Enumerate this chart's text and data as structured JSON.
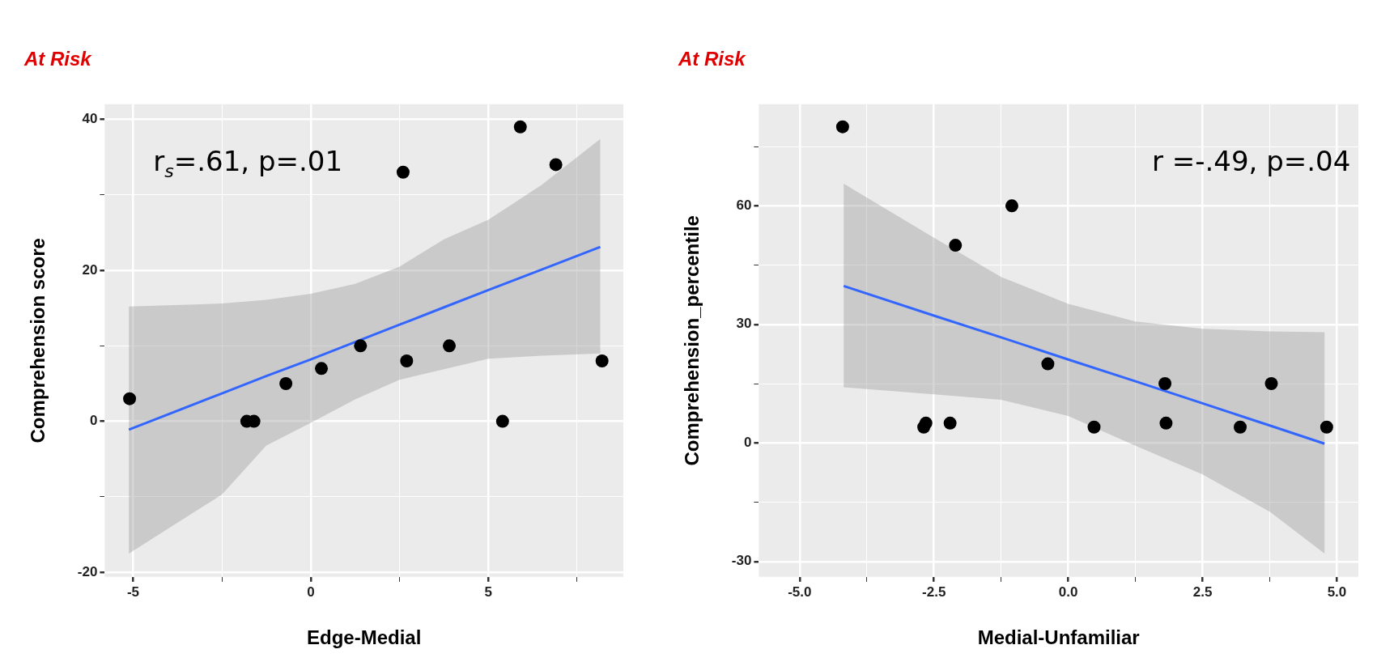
{
  "chart_data": [
    {
      "type": "scatter",
      "title": "At Risk",
      "xlabel": "Edge-Medial",
      "ylabel": "Comprehension score",
      "annotations": [
        "r$_{s}$=.61, p=.01"
      ],
      "xlim": [
        -5.8,
        8.8
      ],
      "ylim": [
        -20.6,
        42
      ],
      "xticks": [
        -5,
        {
          "value": -2.5,
          "label": null
        },
        0,
        {
          "value": 2.5,
          "label": null
        },
        5,
        {
          "value": 7.5,
          "label": null
        }
      ],
      "yticks": [
        -20,
        {
          "value": -10,
          "label": null
        },
        0,
        {
          "value": 10,
          "label": null
        },
        20,
        {
          "value": 30,
          "label": null
        },
        40
      ],
      "grid": true,
      "legend": false,
      "series": [
        {
          "type": "line",
          "color": "#3366ff",
          "x": [
            -5.12,
            -2.5,
            -1.25,
            0,
            1.25,
            2.5,
            3.75,
            5,
            6.5,
            8.15
          ],
          "values": [
            -1.1,
            3.7,
            6,
            8.2,
            10.5,
            12.8,
            15.1,
            17.4,
            20.1,
            23.1
          ],
          "lower": [
            -17.5,
            -9.7,
            -3.2,
            -0.2,
            2.9,
            5.5,
            6.9,
            8.3,
            8.7,
            9
          ],
          "upper": [
            15.2,
            15.6,
            16.1,
            16.9,
            18.2,
            20.5,
            24.1,
            26.7,
            31.3,
            37.4
          ]
        },
        {
          "marker": "circle",
          "color": "#000000",
          "x": [
            -5.1,
            -1.8,
            -1.6,
            -0.7,
            0.3,
            1.4,
            2.6,
            2.7,
            3.9,
            5.4,
            5.9,
            6.9,
            8.2
          ],
          "values": [
            3,
            0,
            0,
            5,
            7,
            10,
            33,
            8,
            10,
            0,
            39,
            34,
            8
          ]
        }
      ]
    },
    {
      "type": "scatter",
      "title": "At Risk",
      "xlabel": "Medial-Unfamiliar",
      "ylabel": "Comprehension_percentile",
      "annotations": [
        "r =-.49, p=.04"
      ],
      "xlim": [
        -5.76,
        5.4
      ],
      "ylim": [
        -33.9,
        85.7
      ],
      "xticks": [
        {
          "value": -5,
          "label": "-5.0"
        },
        {
          "value": -3.75,
          "label": null
        },
        {
          "value": -2.5,
          "label": "-2.5"
        },
        {
          "value": -1.25,
          "label": null
        },
        {
          "value": 0,
          "label": "0.0"
        },
        {
          "value": 1.25,
          "label": null
        },
        {
          "value": 2.5,
          "label": "2.5"
        },
        {
          "value": 3.75,
          "label": null
        },
        {
          "value": 5,
          "label": "5.0"
        }
      ],
      "yticks": [
        -30,
        {
          "value": -15,
          "label": null
        },
        0,
        {
          "value": 15,
          "label": null
        },
        30,
        {
          "value": 45,
          "label": null
        },
        60,
        {
          "value": 75,
          "label": null
        }
      ],
      "grid": true,
      "legend": false,
      "series": [
        {
          "type": "line",
          "color": "#3366ff",
          "x": [
            -4.18,
            -2.5,
            -1.25,
            0,
            1.25,
            2.5,
            3.75,
            4.77
          ],
          "values": [
            39.7,
            32.2,
            26.7,
            21.1,
            15.6,
            10,
            4.4,
            -0.2
          ],
          "lower": [
            14.1,
            12.3,
            10.9,
            6.8,
            -0.7,
            -8,
            -17.4,
            -28
          ],
          "upper": [
            65.6,
            51.9,
            42,
            35.2,
            30.7,
            28.9,
            28.2,
            28
          ]
        },
        {
          "marker": "circle",
          "color": "#000000",
          "x": [
            -4.2,
            -2.69,
            -2.65,
            -2.2,
            -2.1,
            -1.05,
            -0.38,
            0.48,
            1.8,
            1.82,
            3.2,
            3.78,
            4.81
          ],
          "values": [
            80,
            4,
            5,
            5,
            50,
            60,
            20,
            4,
            15,
            5,
            4,
            15,
            4
          ]
        }
      ]
    }
  ]
}
